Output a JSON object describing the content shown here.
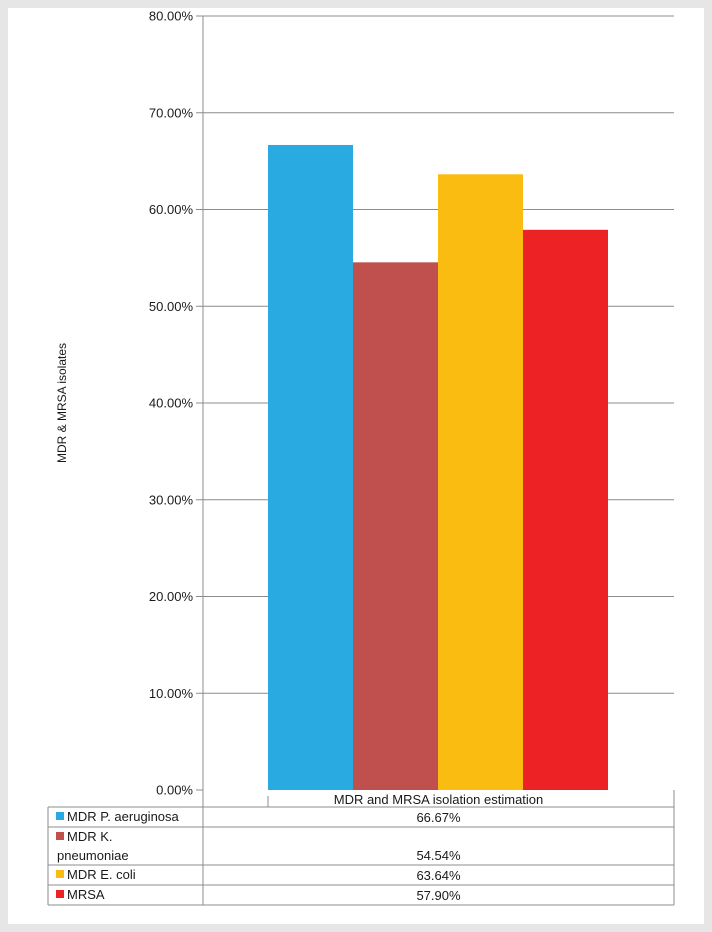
{
  "chart_data": {
    "type": "bar",
    "ylabel": "MDR & MRSA isolates",
    "ylim": [
      0,
      0.8
    ],
    "y_ticks": [
      0,
      0.1,
      0.2,
      0.3,
      0.4,
      0.5,
      0.6,
      0.7,
      0.8
    ],
    "y_tick_labels": [
      "0.00%",
      "10.00%",
      "20.00%",
      "30.00%",
      "40.00%",
      "50.00%",
      "60.00%",
      "70.00%",
      "80.00%"
    ],
    "categories": [
      "MDR and MRSA isolation estimation"
    ],
    "grid": true,
    "legend": "data-table-below",
    "series": [
      {
        "name": "MDR P. aeruginosa",
        "legend_lines": [
          "MDR P. aeruginosa"
        ],
        "values": [
          0.6667
        ],
        "label": "66.67%",
        "color": "#29abe2"
      },
      {
        "name": "MDR K. pneumoniae",
        "legend_lines": [
          "MDR K.",
          "pneumoniae"
        ],
        "values": [
          0.5454
        ],
        "label": "54.54%",
        "color": "#c0504d"
      },
      {
        "name": "MDR E. coli",
        "legend_lines": [
          "MDR E. coli"
        ],
        "values": [
          0.6364
        ],
        "label": "63.64%",
        "color": "#fbbc12"
      },
      {
        "name": "MRSA",
        "legend_lines": [
          "MRSA"
        ],
        "values": [
          0.579
        ],
        "label": "57.90%",
        "color": "#ed2224"
      }
    ]
  }
}
